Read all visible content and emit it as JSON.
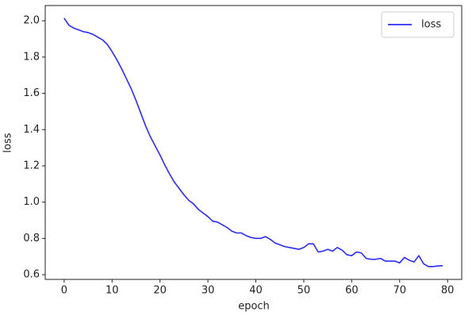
{
  "chart_data": {
    "type": "line",
    "xlabel": "epoch",
    "ylabel": "loss",
    "x": [
      0,
      1,
      2,
      3,
      4,
      5,
      6,
      7,
      8,
      9,
      10,
      11,
      12,
      13,
      14,
      15,
      16,
      17,
      18,
      19,
      20,
      21,
      22,
      23,
      24,
      25,
      26,
      27,
      28,
      29,
      30,
      31,
      32,
      33,
      34,
      35,
      36,
      37,
      38,
      39,
      40,
      41,
      42,
      43,
      44,
      45,
      46,
      47,
      48,
      49,
      50,
      51,
      52,
      53,
      54,
      55,
      56,
      57,
      58,
      59,
      60,
      61,
      62,
      63,
      64,
      65,
      66,
      67,
      68,
      69,
      70,
      71,
      72,
      73,
      74,
      75,
      76,
      77,
      78,
      79
    ],
    "series": [
      {
        "name": "loss",
        "color": "#2b2bf5",
        "values": [
          2.015,
          1.975,
          1.96,
          1.95,
          1.94,
          1.935,
          1.925,
          1.91,
          1.895,
          1.87,
          1.83,
          1.785,
          1.735,
          1.68,
          1.625,
          1.56,
          1.49,
          1.42,
          1.36,
          1.31,
          1.26,
          1.205,
          1.155,
          1.11,
          1.075,
          1.04,
          1.01,
          0.99,
          0.96,
          0.94,
          0.92,
          0.895,
          0.89,
          0.875,
          0.86,
          0.84,
          0.83,
          0.83,
          0.815,
          0.805,
          0.8,
          0.8,
          0.81,
          0.795,
          0.775,
          0.765,
          0.755,
          0.75,
          0.745,
          0.74,
          0.75,
          0.77,
          0.77,
          0.725,
          0.73,
          0.74,
          0.73,
          0.75,
          0.735,
          0.71,
          0.705,
          0.725,
          0.72,
          0.69,
          0.685,
          0.685,
          0.69,
          0.675,
          0.675,
          0.675,
          0.665,
          0.695,
          0.68,
          0.67,
          0.705,
          0.66,
          0.645,
          0.645,
          0.648,
          0.65
        ]
      }
    ],
    "xlim": [
      -3.95,
      82.95
    ],
    "ylim": [
      0.574,
      2.084
    ],
    "xticks": [
      0,
      10,
      20,
      30,
      40,
      50,
      60,
      70,
      80
    ],
    "yticks": [
      0.6,
      0.8,
      {
        "value": 1.0,
        "label": "1.0"
      },
      1.2,
      1.4,
      1.6,
      1.8,
      {
        "value": 2.0,
        "label": "2.0"
      }
    ],
    "legend": "upper right"
  }
}
